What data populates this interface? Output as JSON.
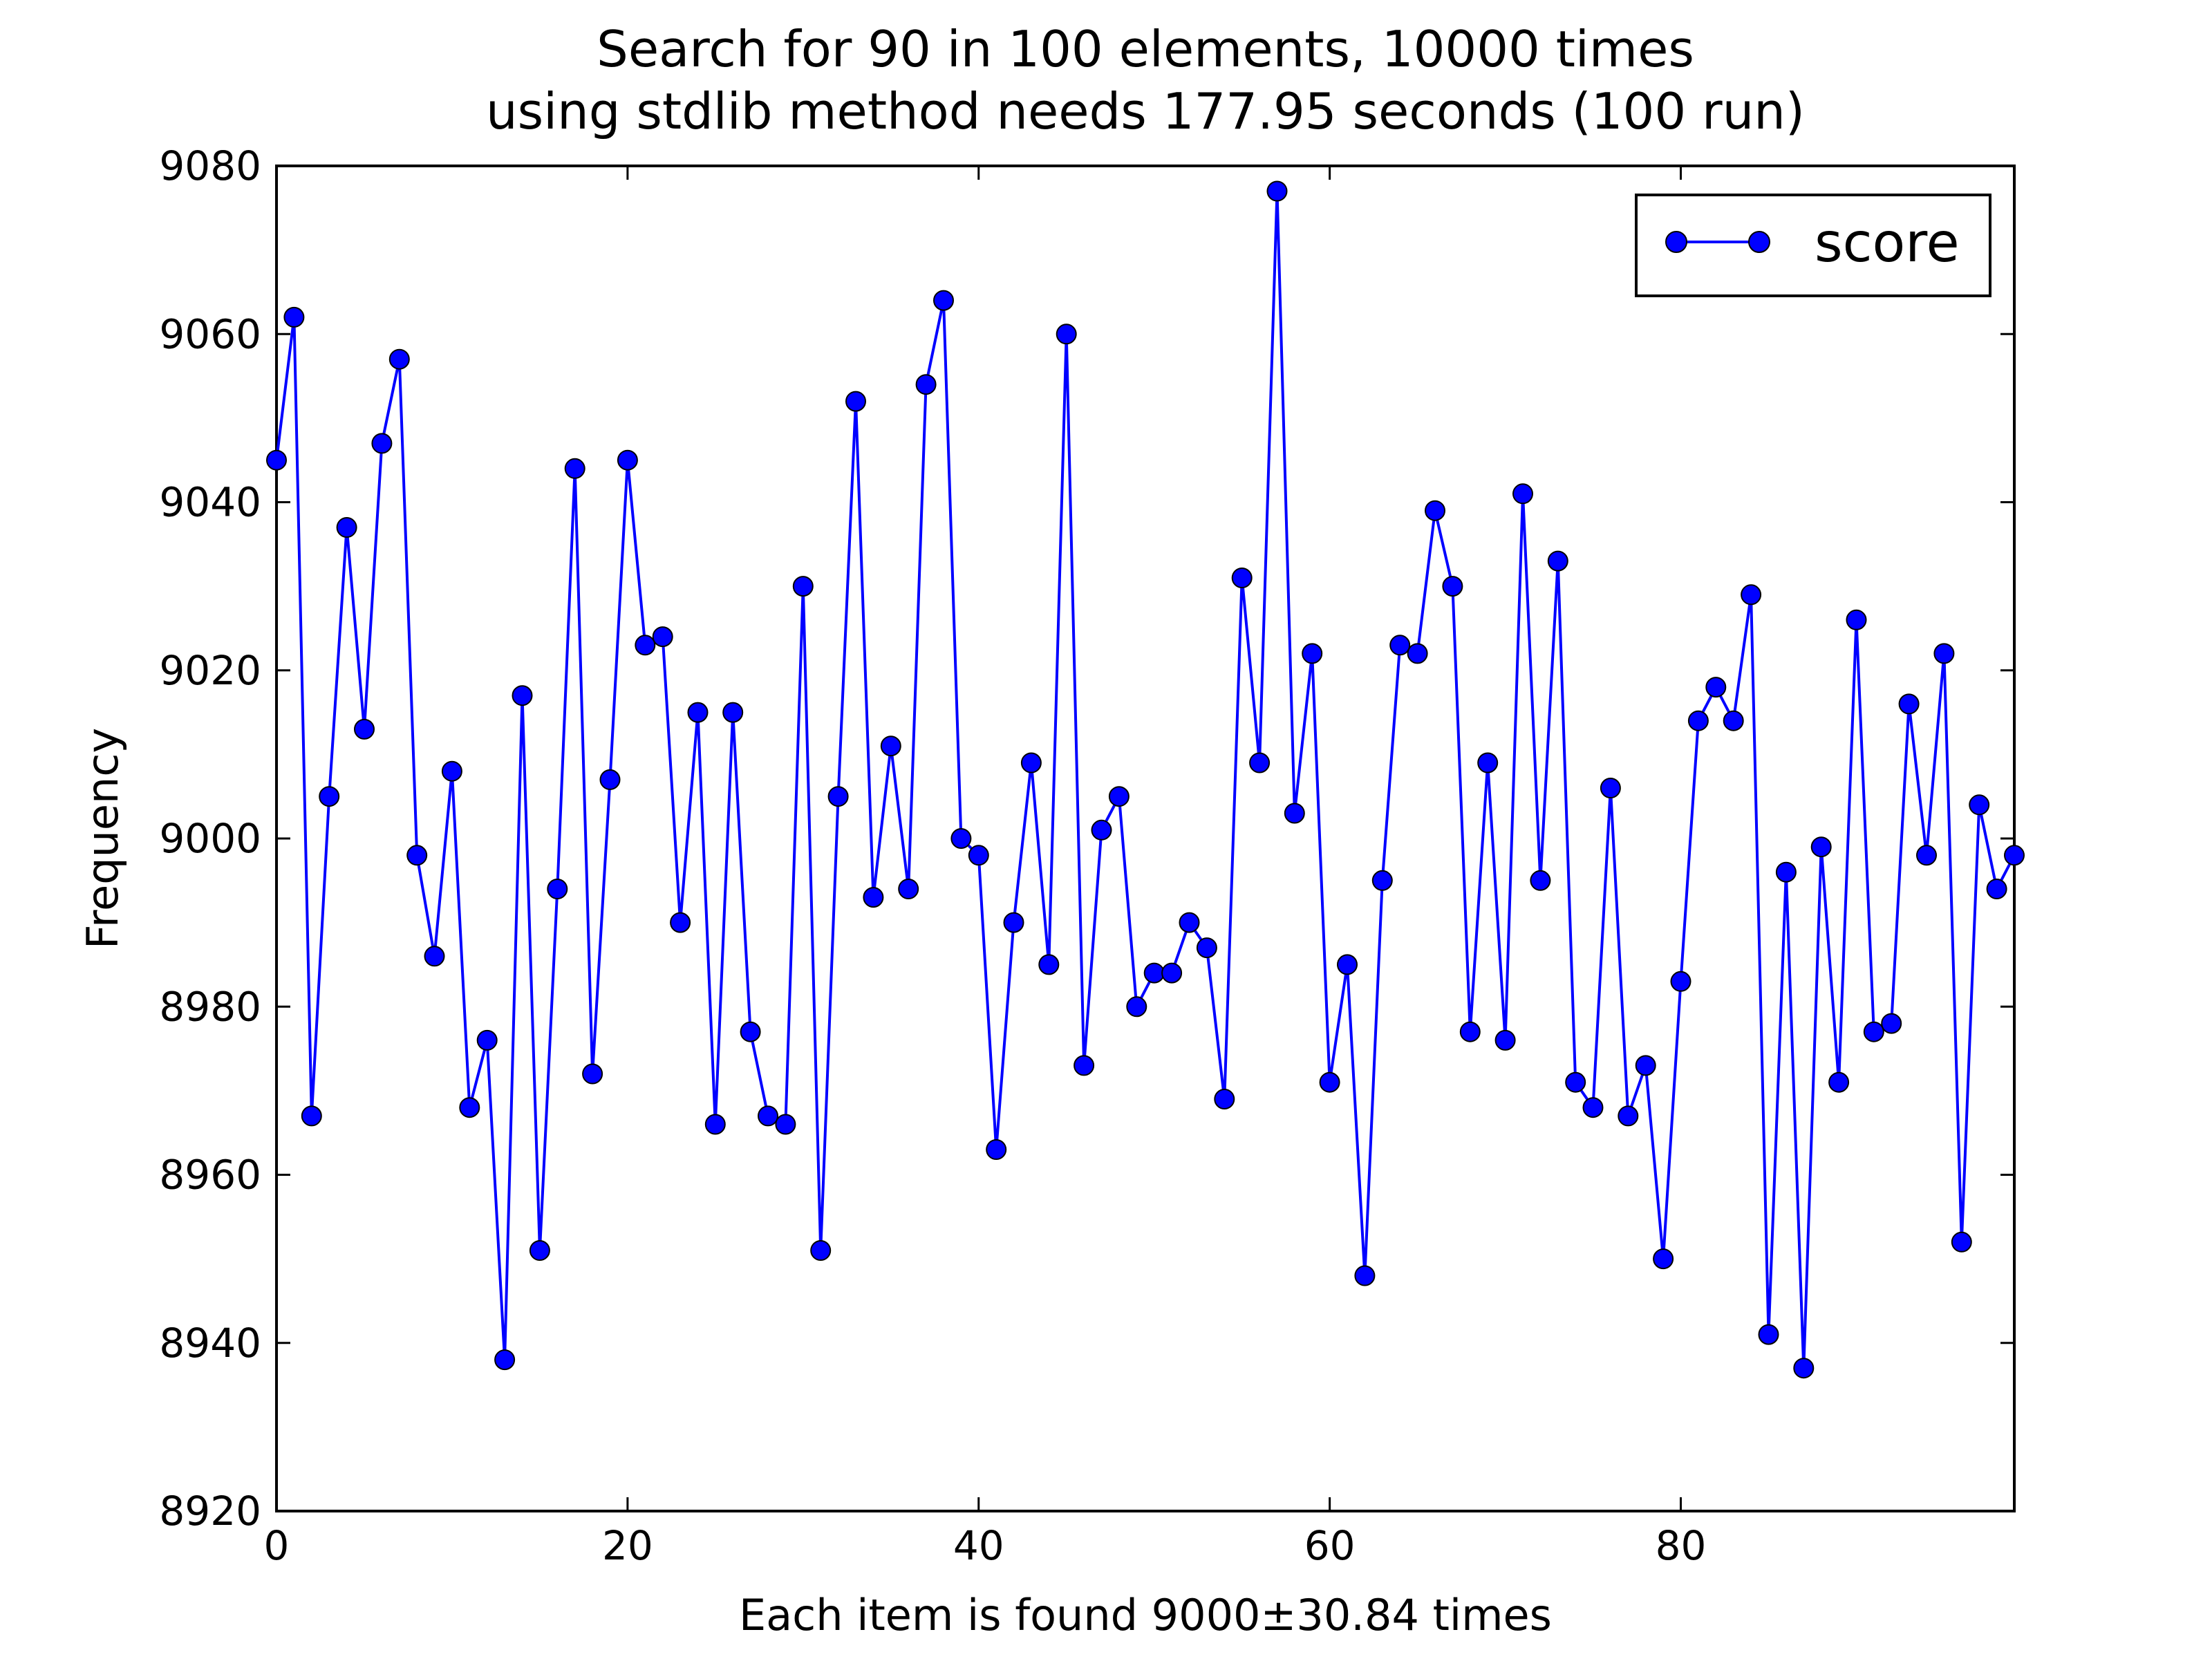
{
  "chart_data": {
    "type": "line",
    "title_line1": "Search for 90 in 100 elements, 10000 times",
    "title_line2": "using stdlib method needs 177.95 seconds (100 run)",
    "xlabel": "Each item is found 9000±30.84 times",
    "ylabel": "Frequency",
    "xlim": [
      0,
      99
    ],
    "ylim": [
      8920,
      9080
    ],
    "xticks": [
      0,
      20,
      40,
      60,
      80
    ],
    "yticks": [
      8920,
      8940,
      8960,
      8980,
      9000,
      9020,
      9040,
      9060,
      9080
    ],
    "legend_position": "top-right",
    "grid": false,
    "series": [
      {
        "name": "score",
        "color": "#0000ff",
        "marker": "circle",
        "values": [
          9045,
          9062,
          8967,
          9005,
          9037,
          9013,
          9047,
          9057,
          8998,
          8986,
          9008,
          8968,
          8976,
          8938,
          9017,
          8951,
          8994,
          9044,
          8972,
          9007,
          9045,
          9023,
          9024,
          8990,
          9015,
          8966,
          9015,
          8977,
          8967,
          8966,
          9030,
          8951,
          9005,
          9052,
          8993,
          9011,
          8994,
          9054,
          9064,
          9000,
          8998,
          8963,
          8990,
          9009,
          8985,
          9060,
          8973,
          9001,
          9005,
          8980,
          8984,
          8984,
          8990,
          8987,
          8969,
          9031,
          9009,
          9077,
          9003,
          9022,
          8971,
          8985,
          8948,
          8995,
          9023,
          9022,
          9039,
          9030,
          8977,
          9009,
          8976,
          9041,
          8995,
          9033,
          8971,
          8968,
          9006,
          8967,
          8973,
          8950,
          8983,
          9014,
          9018,
          9014,
          9029,
          8941,
          8996,
          8937,
          8999,
          8971,
          9026,
          8977,
          8978,
          9016,
          8998,
          9022,
          8952,
          9004,
          8994,
          8998
        ]
      }
    ]
  }
}
